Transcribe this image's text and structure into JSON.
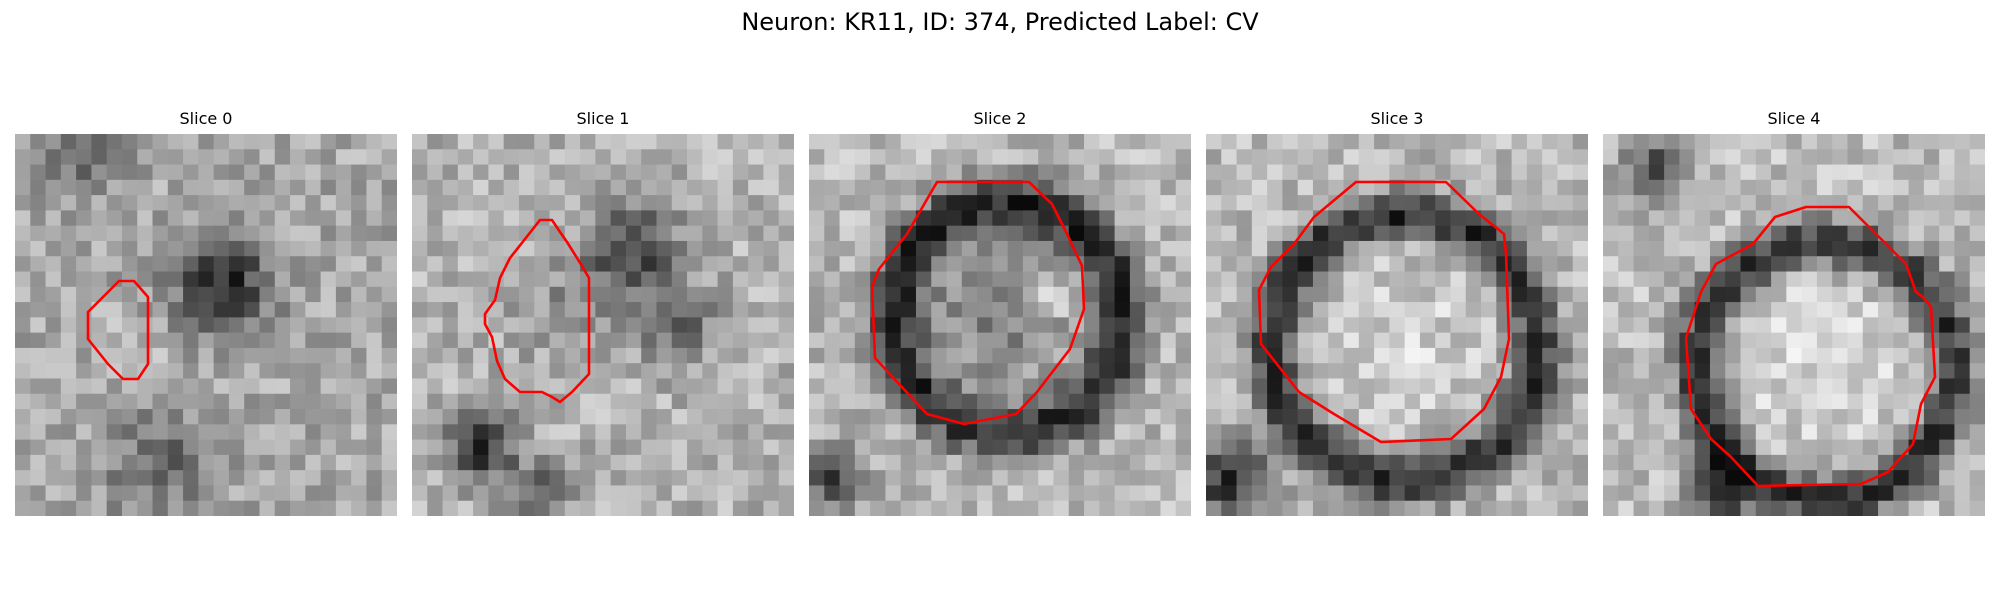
{
  "figure": {
    "title": "Neuron: KR11, ID: 374, Predicted Label: CV"
  },
  "panels": [
    {
      "title": "Slice 0"
    },
    {
      "title": "Slice 1"
    },
    {
      "title": "Slice 2"
    },
    {
      "title": "Slice 3"
    },
    {
      "title": "Slice 4"
    }
  ],
  "colors": {
    "contour": "#ff0000",
    "background": "#ffffff",
    "colormap": "gray"
  }
}
